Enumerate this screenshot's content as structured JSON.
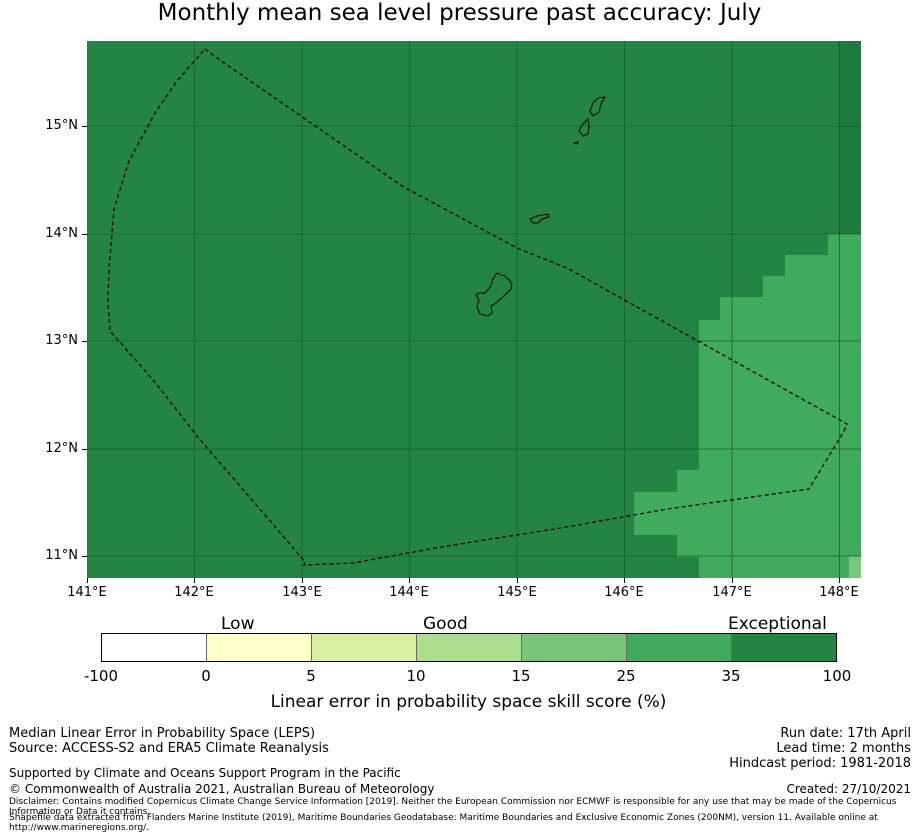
{
  "title": "Monthly mean sea level pressure past accuracy: July",
  "map": {
    "lat_labels": [
      "15°N",
      "14°N",
      "13°N",
      "12°N",
      "11°N"
    ],
    "lon_labels": [
      "141°E",
      "142°E",
      "143°E",
      "144°E",
      "145°E",
      "146°E",
      "147°E",
      "148°E"
    ],
    "colors": {
      "exceptional": "#238443",
      "very_good": "#41ab5d",
      "good_light": "#78c679",
      "grid_line": "#1a5c2e",
      "coast": "#000000"
    }
  },
  "colorbar": {
    "categories": [
      "Low",
      "Good",
      "Exceptional"
    ],
    "ticks": [
      "-100",
      "0",
      "5",
      "10",
      "15",
      "25",
      "35",
      "100"
    ],
    "colors": [
      "#ffffff",
      "#ffffcc",
      "#d9f0a3",
      "#addd8e",
      "#78c679",
      "#41ab5d",
      "#238443"
    ],
    "label": "Linear error in probability space skill score (%)"
  },
  "info": {
    "left_line1": "Median Linear Error in Probability Space (LEPS)",
    "left_line2": "Source: ACCESS-S2 and ERA5 Climate Reanalysis",
    "support": "Supported by Climate and Oceans Support Program in the Pacific",
    "copyright": "© Commonwealth of Australia 2021, Australian Bureau of Meteorology",
    "disclaimer1": "Disclaimer: Contains modified Copernicus Climate Change Service Information [2019]. Neither the European Commission nor ECMWF is responsible for any use that may be made of the Copernicus Information or Data it contains.",
    "disclaimer2": "Shapefile data extracted from Flanders Marine Institute (2019), Maritime Boundaries Geodatabase: Maritime Boundaries and Exclusive Economic Zones (200NM), version 11. Available online at http://www.marineregions.org/.",
    "run_date": "Run date: 17th April",
    "lead_time": "Lead time: 2 months",
    "hindcast": "Hindcast period: 1981-2018",
    "created": "Created: 27/10/2021"
  }
}
